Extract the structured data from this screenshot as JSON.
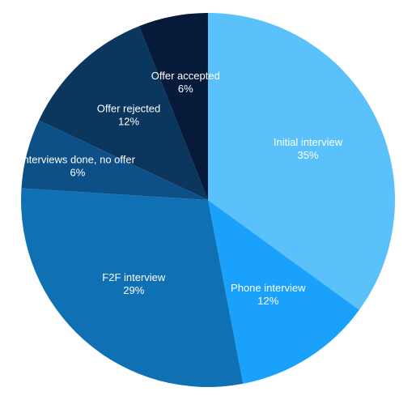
{
  "chart_data": {
    "type": "pie",
    "title": "",
    "start_angle_deg": 0,
    "direction": "clockwise",
    "slices": [
      {
        "label": "Initial interview",
        "value": 35,
        "display": "35%",
        "color": "#5ac1fb"
      },
      {
        "label": "Phone interview",
        "value": 12,
        "display": "12%",
        "color": "#1aa1fb"
      },
      {
        "label": "F2F interview",
        "value": 29,
        "display": "29%",
        "color": "#1070b4"
      },
      {
        "label": "Interviews done, no offer",
        "value": 6,
        "display": "6%",
        "color": "#0d5088"
      },
      {
        "label": "Offer rejected",
        "value": 12,
        "display": "12%",
        "color": "#0b365e"
      },
      {
        "label": "Offer accepted",
        "value": 6,
        "display": "6%",
        "color": "#061a3a"
      }
    ]
  }
}
